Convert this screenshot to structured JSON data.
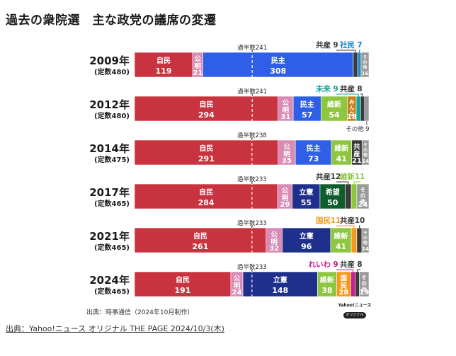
{
  "title": "過去の衆院選　主な政党の議席の変遷",
  "credit": "出典：時事通信（2024年10月制作）",
  "logo": {
    "line1": "Yahoo!ニュース",
    "line2": "オリジナル"
  },
  "source": "出典：Yahoo!ニュース オリジナル THE PAGE 2024/10/3(木)",
  "colors": {
    "jimin": "#c9333f",
    "komei": "#d98bb5",
    "minshu": "#2f5fe6",
    "rikken": "#1e2f8c",
    "ishin": "#8fc63f",
    "kibou": "#0d5e2a",
    "kyosan": "#3a3a3a",
    "shamin": "#1b88c6",
    "mirai": "#14a39a",
    "minna": "#c77f1e",
    "kokumin": "#f39a1e",
    "reiwa": "#c71f8e",
    "sonota": "#9a9a9a"
  },
  "chart_data": {
    "type": "stacked_bar_horizontal",
    "elections": [
      {
        "year": "2009年",
        "teisu": "(定数480)",
        "total": 480,
        "majority": 241,
        "majority_label": "過半数241",
        "segments": [
          {
            "party": "自民",
            "seats": 119,
            "color_key": "jimin",
            "label": "自民",
            "label_pos": "inside"
          },
          {
            "party": "公明",
            "seats": 21,
            "color_key": "komei",
            "label": "公明",
            "label_pos": "vertical"
          },
          {
            "party": "民主",
            "seats": 308,
            "color_key": "minshu",
            "label": "民主",
            "label_pos": "inside"
          },
          {
            "party": "共産",
            "seats": 9,
            "color_key": "kyosan",
            "label": "共産",
            "label_pos": "callout",
            "callout_color": "#3a3a3a"
          },
          {
            "party": "社民",
            "seats": 7,
            "color_key": "shamin",
            "label": "社民",
            "label_pos": "callout",
            "callout_color": "#1b88c6"
          },
          {
            "party": "その他",
            "seats": 16,
            "color_key": "sonota",
            "label": "その他",
            "label_pos": "vertical"
          }
        ]
      },
      {
        "year": "2012年",
        "teisu": "(定数480)",
        "total": 480,
        "majority": 241,
        "majority_label": "過半数241",
        "segments": [
          {
            "party": "自民",
            "seats": 294,
            "color_key": "jimin",
            "label": "自民",
            "label_pos": "inside"
          },
          {
            "party": "公明",
            "seats": 31,
            "color_key": "komei",
            "label": "公明",
            "label_pos": "vertical"
          },
          {
            "party": "民主",
            "seats": 57,
            "color_key": "minshu",
            "label": "民主",
            "label_pos": "inside"
          },
          {
            "party": "維新",
            "seats": 54,
            "color_key": "ishin",
            "label": "維新",
            "label_pos": "inside"
          },
          {
            "party": "みんな",
            "seats": 18,
            "color_key": "minna",
            "label": "みんな",
            "label_pos": "vertical"
          },
          {
            "party": "未来",
            "seats": 9,
            "color_key": "mirai",
            "label": "未来",
            "label_pos": "callout",
            "callout_color": "#14a39a"
          },
          {
            "party": "共産",
            "seats": 8,
            "color_key": "kyosan",
            "label": "共産",
            "label_pos": "callout",
            "callout_color": "#3a3a3a"
          },
          {
            "party": "その他",
            "seats": 9,
            "color_key": "sonota",
            "label": "その他",
            "label_pos": "callout_below",
            "callout_color": "#555555"
          }
        ]
      },
      {
        "year": "2014年",
        "teisu": "(定数475)",
        "total": 475,
        "majority": 238,
        "majority_label": "過半数238",
        "segments": [
          {
            "party": "自民",
            "seats": 291,
            "color_key": "jimin",
            "label": "自民",
            "label_pos": "inside"
          },
          {
            "party": "公明",
            "seats": 35,
            "color_key": "komei",
            "label": "公明",
            "label_pos": "vertical"
          },
          {
            "party": "民主",
            "seats": 73,
            "color_key": "minshu",
            "label": "民主",
            "label_pos": "inside"
          },
          {
            "party": "維新",
            "seats": 41,
            "color_key": "ishin",
            "label": "維新",
            "label_pos": "inside"
          },
          {
            "party": "共産",
            "seats": 21,
            "color_key": "kyosan",
            "label": "共産",
            "label_pos": "vertical"
          },
          {
            "party": "その他",
            "seats": 14,
            "color_key": "sonota",
            "label": "その他",
            "label_pos": "vertical"
          }
        ]
      },
      {
        "year": "2017年",
        "teisu": "(定数465)",
        "total": 465,
        "majority": 233,
        "majority_label": "過半数233",
        "segments": [
          {
            "party": "自民",
            "seats": 284,
            "color_key": "jimin",
            "label": "自民",
            "label_pos": "inside"
          },
          {
            "party": "公明",
            "seats": 29,
            "color_key": "komei",
            "label": "公明",
            "label_pos": "vertical"
          },
          {
            "party": "立憲",
            "seats": 55,
            "color_key": "rikken",
            "label": "立憲",
            "label_pos": "inside"
          },
          {
            "party": "希望",
            "seats": 50,
            "color_key": "kibou",
            "label": "希望",
            "label_pos": "inside"
          },
          {
            "party": "共産",
            "seats": 12,
            "color_key": "kyosan",
            "label": "共産",
            "label_pos": "callout",
            "callout_color": "#3a3a3a"
          },
          {
            "party": "維新",
            "seats": 11,
            "color_key": "ishin",
            "label": "維新",
            "label_pos": "callout",
            "callout_color": "#8fc63f"
          },
          {
            "party": "その他",
            "seats": 24,
            "color_key": "sonota",
            "label": "その他",
            "label_pos": "vertical"
          }
        ]
      },
      {
        "year": "2021年",
        "teisu": "(定数465)",
        "total": 465,
        "majority": 233,
        "majority_label": "過半数233",
        "segments": [
          {
            "party": "自民",
            "seats": 261,
            "color_key": "jimin",
            "label": "自民",
            "label_pos": "inside"
          },
          {
            "party": "公明",
            "seats": 32,
            "color_key": "komei",
            "label": "公明",
            "label_pos": "vertical"
          },
          {
            "party": "立憲",
            "seats": 96,
            "color_key": "rikken",
            "label": "立憲",
            "label_pos": "inside"
          },
          {
            "party": "維新",
            "seats": 41,
            "color_key": "ishin",
            "label": "維新",
            "label_pos": "inside"
          },
          {
            "party": "国民",
            "seats": 11,
            "color_key": "kokumin",
            "label": "国民",
            "label_pos": "callout",
            "callout_color": "#f39a1e"
          },
          {
            "party": "共産",
            "seats": 10,
            "color_key": "kyosan",
            "label": "共産",
            "label_pos": "callout",
            "callout_color": "#3a3a3a"
          },
          {
            "party": "その他",
            "seats": 14,
            "color_key": "sonota",
            "label": "その他",
            "label_pos": "vertical"
          }
        ]
      },
      {
        "year": "2024年",
        "teisu": "(定数465)",
        "total": 465,
        "majority": 233,
        "majority_label": "過半数233",
        "segments": [
          {
            "party": "自民",
            "seats": 191,
            "color_key": "jimin",
            "label": "自民",
            "label_pos": "inside"
          },
          {
            "party": "公明",
            "seats": 24,
            "color_key": "komei",
            "label": "公明",
            "label_pos": "vertical"
          },
          {
            "party": "立憲",
            "seats": 148,
            "color_key": "rikken",
            "label": "立憲",
            "label_pos": "inside"
          },
          {
            "party": "維新",
            "seats": 38,
            "color_key": "ishin",
            "label": "維新",
            "label_pos": "inside"
          },
          {
            "party": "国民",
            "seats": 28,
            "color_key": "kokumin",
            "label": "国民",
            "label_pos": "vertical"
          },
          {
            "party": "れいわ",
            "seats": 9,
            "color_key": "reiwa",
            "label": "れいわ",
            "label_pos": "callout",
            "callout_color": "#c71f8e"
          },
          {
            "party": "共産",
            "seats": 8,
            "color_key": "kyosan",
            "label": "共産",
            "label_pos": "callout",
            "callout_color": "#3a3a3a"
          },
          {
            "party": "その他",
            "seats": 19,
            "color_key": "sonota",
            "label": "その他",
            "label_pos": "vertical"
          }
        ]
      }
    ]
  }
}
